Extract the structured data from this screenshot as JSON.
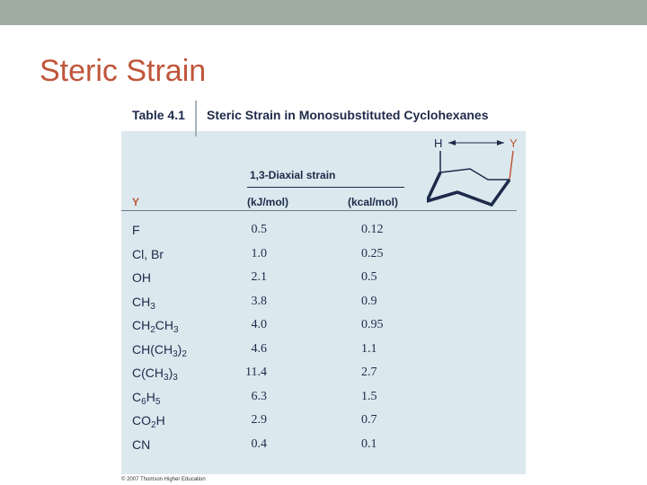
{
  "slide": {
    "title": "Steric Strain"
  },
  "table": {
    "number": "Table 4.1",
    "caption": "Steric Strain in Monosubstituted Cyclohexanes",
    "group_header": "1,3-Diaxial strain",
    "col_y": "Y",
    "col_kj": "(kJ/mol)",
    "col_kcal": "(kcal/mol)",
    "diagram": {
      "label_h": "H",
      "label_y": "Y"
    },
    "rows": [
      {
        "y": "F",
        "kj": "0.5",
        "kcal": "0.12"
      },
      {
        "y": "Cl, Br",
        "kj": "1.0",
        "kcal": "0.25"
      },
      {
        "y": "OH",
        "kj": "2.1",
        "kcal": "0.5"
      },
      {
        "y": "CH3",
        "kj": "3.8",
        "kcal": "0.9"
      },
      {
        "y": "CH2CH3",
        "kj": "4.0",
        "kcal": "0.95"
      },
      {
        "y": "CH(CH3)2",
        "kj": "4.6",
        "kcal": "1.1"
      },
      {
        "y": "C(CH3)3",
        "kj": "11.4",
        "kcal": "2.7"
      },
      {
        "y": "C6H5",
        "kj": "6.3",
        "kcal": "1.5"
      },
      {
        "y": "CO2H",
        "kj": "2.9",
        "kcal": "0.7"
      },
      {
        "y": "CN",
        "kj": "0.4",
        "kcal": "0.1"
      }
    ]
  },
  "footer": {
    "copyright": "© 2007 Thomson Higher Education"
  },
  "colors": {
    "title": "#c0553a",
    "panel": "#dbe8ee",
    "topbar": "#a0aba2",
    "text": "#1d2a4a"
  }
}
